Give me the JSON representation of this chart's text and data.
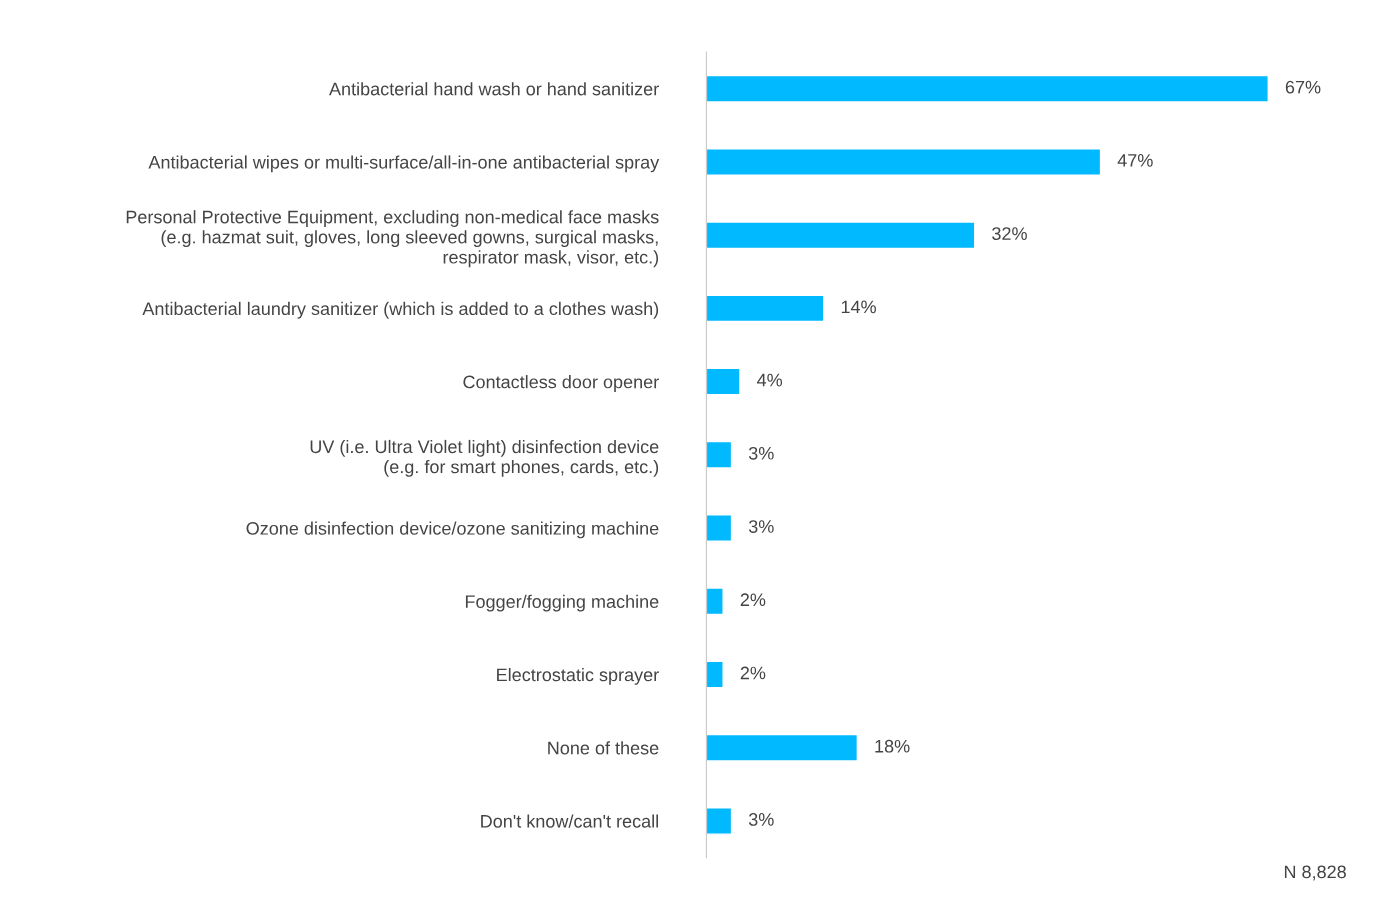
{
  "chart_data": {
    "type": "bar",
    "orientation": "horizontal",
    "categories": [
      "Antibacterial hand wash or hand sanitizer",
      "Antibacterial wipes or multi-surface/all-in-one antibacterial spray",
      "Personal Protective Equipment, excluding non-medical face masks\n(e.g. hazmat suit, gloves, long sleeved gowns, surgical masks,\nrespirator mask, visor, etc.)",
      "Antibacterial laundry sanitizer (which is added to a clothes wash)",
      "Contactless door opener",
      "UV (i.e. Ultra Violet light) disinfection device\n(e.g. for smart phones, cards, etc.)",
      "Ozone disinfection device/ozone sanitizing machine",
      "Fogger/fogging machine",
      "Electrostatic sprayer",
      "None of these",
      "Don't know/can't recall"
    ],
    "values": [
      67,
      47,
      32,
      14,
      4,
      3,
      3,
      2,
      2,
      18,
      3
    ],
    "value_labels": [
      "67%",
      "47%",
      "32%",
      "14%",
      "4%",
      "3%",
      "3%",
      "2%",
      "2%",
      "18%",
      "3%"
    ],
    "color": "#00b9ff",
    "tick_labels": "y",
    "grid": false,
    "legend": false,
    "annotations": [
      "N 8,828"
    ]
  }
}
